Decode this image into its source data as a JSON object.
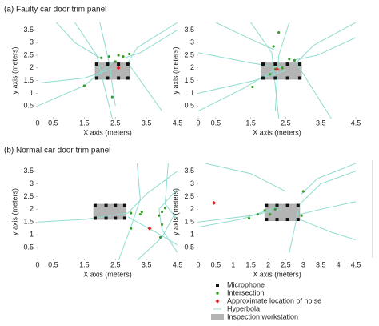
{
  "sections": [
    "(a) Faulty car door trim panel",
    "(b) Normal car door trim panel"
  ],
  "legend": [
    {
      "label": "Microphone",
      "color": "#111111"
    },
    {
      "label": "Intersection",
      "color": "#3a9a2a"
    },
    {
      "label": "Approximate location of noise",
      "color": "#e02020"
    },
    {
      "label": "Hyperbola",
      "color": "#8fdcd0"
    },
    {
      "label": "Inspection workstation",
      "color": "#b4b4b4"
    }
  ],
  "chart_data": [
    {
      "type": "scatter",
      "x_label": "X axis (meters)",
      "y_label": "y axis (meters)",
      "xlim": [
        0,
        4.5
      ],
      "ylim": [
        0,
        3.8
      ],
      "xticks": [
        0,
        0.5,
        1.5,
        2.5,
        3.5,
        4.5
      ],
      "yticks": [
        0.5,
        1,
        1.5,
        2,
        2.5,
        3,
        3.5
      ],
      "workstation": {
        "x": [
          1.85,
          2.95
        ],
        "y": [
          1.55,
          2.2
        ]
      },
      "microphones": {
        "x": [
          1.9,
          2.25,
          2.6,
          2.9,
          1.9,
          2.25,
          2.6,
          2.9
        ],
        "y": [
          2.15,
          2.15,
          2.15,
          2.15,
          1.6,
          1.6,
          1.6,
          1.6
        ]
      },
      "intersections": {
        "x": [
          2.05,
          2.3,
          2.6,
          2.75,
          2.5,
          1.5,
          2.4,
          2.95
        ],
        "y": [
          2.4,
          2.45,
          2.5,
          2.45,
          2.25,
          1.3,
          0.85,
          2.55
        ]
      },
      "noise": {
        "x": [
          2.6
        ],
        "y": [
          2.0
        ]
      },
      "hyperbolas": [
        {
          "x": [
            1.2,
            1.9,
            2.4
          ],
          "y": [
            3.8,
            2.5,
            0
          ]
        },
        {
          "x": [
            2.0,
            2.3,
            2.5
          ],
          "y": [
            3.8,
            2.2,
            0.5
          ]
        },
        {
          "x": [
            0,
            1.5,
            2.5
          ],
          "y": [
            0.5,
            1.3,
            2.3
          ]
        },
        {
          "x": [
            0,
            1.5,
            2.5
          ],
          "y": [
            1.4,
            1.6,
            2.0
          ]
        },
        {
          "x": [
            4.5,
            3.2,
            2.9,
            4.0
          ],
          "y": [
            3.8,
            2.8,
            2.2,
            0.3
          ]
        },
        {
          "x": [
            4.5,
            3.3,
            2.8
          ],
          "y": [
            3.5,
            2.6,
            2.4
          ]
        },
        {
          "x": [
            0.6,
            1.2,
            2.0
          ],
          "y": [
            3.8,
            3.0,
            2.4
          ]
        }
      ]
    },
    {
      "type": "scatter",
      "x_label": "X axis (meters)",
      "y_label": "y axis (meters)",
      "xlim": [
        0,
        4.5
      ],
      "ylim": [
        0,
        3.8
      ],
      "xticks": [
        0,
        0.5,
        1.5,
        2.5,
        3.5,
        4.5
      ],
      "yticks": [
        0.5,
        1,
        1.5,
        2,
        2.5,
        3,
        3.5
      ],
      "workstation": {
        "x": [
          1.8,
          2.95
        ],
        "y": [
          1.55,
          2.2
        ]
      },
      "microphones": {
        "x": [
          1.85,
          2.2,
          2.55,
          2.9,
          1.85,
          2.2,
          2.55,
          2.9
        ],
        "y": [
          2.15,
          2.15,
          2.15,
          2.15,
          1.6,
          1.6,
          1.6,
          1.6
        ]
      },
      "intersections": {
        "x": [
          2.15,
          2.3,
          2.6,
          2.75,
          2.4,
          2.2,
          1.55,
          2.05
        ],
        "y": [
          2.85,
          3.4,
          2.35,
          2.3,
          2.0,
          1.95,
          1.25,
          1.75
        ]
      },
      "noise": {
        "x": [
          2.25
        ],
        "y": [
          1.95
        ]
      },
      "hyperbolas": [
        {
          "x": [
            1.5,
            2.1,
            2.3
          ],
          "y": [
            3.8,
            2.6,
            0
          ]
        },
        {
          "x": [
            2.6,
            2.3,
            2.2
          ],
          "y": [
            3.8,
            2.5,
            0.3
          ]
        },
        {
          "x": [
            0,
            1.3,
            2.4
          ],
          "y": [
            0.3,
            1.2,
            2.1
          ]
        },
        {
          "x": [
            0,
            1.5,
            2.4
          ],
          "y": [
            2.6,
            2.2,
            2.0
          ]
        },
        {
          "x": [
            4.5,
            3.3,
            2.8,
            3.8
          ],
          "y": [
            3.8,
            2.9,
            2.2,
            0
          ]
        },
        {
          "x": [
            4.5,
            3.4,
            2.7
          ],
          "y": [
            3.2,
            2.5,
            2.3
          ]
        },
        {
          "x": [
            0.5,
            1.4,
            2.2
          ],
          "y": [
            3.8,
            3.2,
            2.7
          ]
        },
        {
          "x": [
            0,
            1.6,
            2.5
          ],
          "y": [
            1.0,
            1.5,
            1.9
          ]
        }
      ]
    },
    {
      "type": "scatter",
      "x_label": "X axis (meters)",
      "y_label": "y axis (meters)",
      "xlim": [
        0,
        4.5
      ],
      "ylim": [
        0,
        3.8
      ],
      "xticks": [
        0,
        0.5,
        1.5,
        2.5,
        3.5,
        4.5
      ],
      "yticks": [
        0.5,
        1,
        1.5,
        2,
        2.5,
        3,
        3.5
      ],
      "workstation": {
        "x": [
          1.8,
          2.85
        ],
        "y": [
          1.6,
          2.2
        ]
      },
      "microphones": {
        "x": [
          1.85,
          2.2,
          2.5,
          2.8,
          1.85,
          2.2,
          2.5,
          2.8
        ],
        "y": [
          2.15,
          2.15,
          2.15,
          2.15,
          1.65,
          1.65,
          1.65,
          1.65
        ]
      },
      "intersections": {
        "x": [
          3.0,
          3.3,
          3.35,
          3.9,
          4.0,
          4.1,
          4.0,
          3.95,
          3.0
        ],
        "y": [
          1.85,
          1.8,
          1.9,
          1.75,
          1.9,
          2.05,
          1.4,
          0.9,
          1.25
        ]
      },
      "noise": {
        "x": [
          3.6
        ],
        "y": [
          1.25
        ]
      },
      "hyperbolas": [
        {
          "x": [
            0,
            1.5,
            2.9
          ],
          "y": [
            1.5,
            1.6,
            1.85
          ]
        },
        {
          "x": [
            2.9,
            3.5,
            4.5
          ],
          "y": [
            1.85,
            2.6,
            3.5
          ]
        },
        {
          "x": [
            3.2,
            3.3,
            3.0,
            2.6
          ],
          "y": [
            3.8,
            2.4,
            1.3,
            0
          ]
        },
        {
          "x": [
            4.5,
            3.9,
            4.0,
            4.5
          ],
          "y": [
            2.8,
            2.0,
            1.2,
            0.3
          ]
        },
        {
          "x": [
            2.9,
            3.8,
            4.5
          ],
          "y": [
            1.7,
            1.1,
            0.6
          ]
        },
        {
          "x": [
            3.2,
            4.0,
            4.4
          ],
          "y": [
            0,
            0.9,
            1.8
          ]
        },
        {
          "x": [
            4.2,
            4.1,
            4.5
          ],
          "y": [
            3.8,
            2.2,
            1.6
          ]
        }
      ]
    },
    {
      "type": "scatter",
      "x_label": "X axis (meters)",
      "y_label": "y axis (meters)",
      "xlim": [
        0,
        4.5
      ],
      "ylim": [
        0,
        3.8
      ],
      "xticks": [
        0,
        0.5,
        1,
        1.5,
        2,
        2.5,
        3,
        3.5,
        4,
        4.5
      ],
      "yticks": [
        0.5,
        1,
        1.5,
        2,
        2.5,
        3,
        3.5
      ],
      "workstation": {
        "x": [
          1.9,
          2.9
        ],
        "y": [
          1.55,
          2.2
        ]
      },
      "microphones": {
        "x": [
          1.95,
          2.25,
          2.55,
          2.85,
          1.95,
          2.25,
          2.55,
          2.85
        ],
        "y": [
          2.15,
          2.15,
          2.15,
          2.15,
          1.6,
          1.6,
          1.6,
          1.6
        ]
      },
      "intersections": {
        "x": [
          1.45,
          1.7,
          1.9,
          2.2,
          2.95,
          3.0,
          2.05
        ],
        "y": [
          1.65,
          1.8,
          1.95,
          2.0,
          1.75,
          2.7,
          1.8
        ]
      },
      "noise": {
        "x": [
          0.45
        ],
        "y": [
          2.25
        ]
      },
      "hyperbolas": [
        {
          "x": [
            0,
            1.2,
            2.3
          ],
          "y": [
            1.3,
            1.6,
            2.1
          ]
        },
        {
          "x": [
            0,
            1.5,
            2.4
          ],
          "y": [
            1.5,
            1.75,
            2.0
          ]
        },
        {
          "x": [
            4.5,
            3.5,
            2.9,
            2.6
          ],
          "y": [
            3.5,
            3.0,
            2.2,
            0.3
          ]
        },
        {
          "x": [
            4.5,
            3.4,
            2.95
          ],
          "y": [
            3.8,
            3.2,
            2.6
          ]
        },
        {
          "x": [
            4.5,
            3.5,
            2.9
          ],
          "y": [
            2.3,
            2.0,
            1.8
          ]
        },
        {
          "x": [
            2.9,
            3.8,
            4.5
          ],
          "y": [
            1.6,
            1.1,
            0.8
          ]
        },
        {
          "x": [
            0.2,
            1.5,
            2.5
          ],
          "y": [
            3.8,
            3.4,
            2.7
          ]
        }
      ]
    }
  ]
}
